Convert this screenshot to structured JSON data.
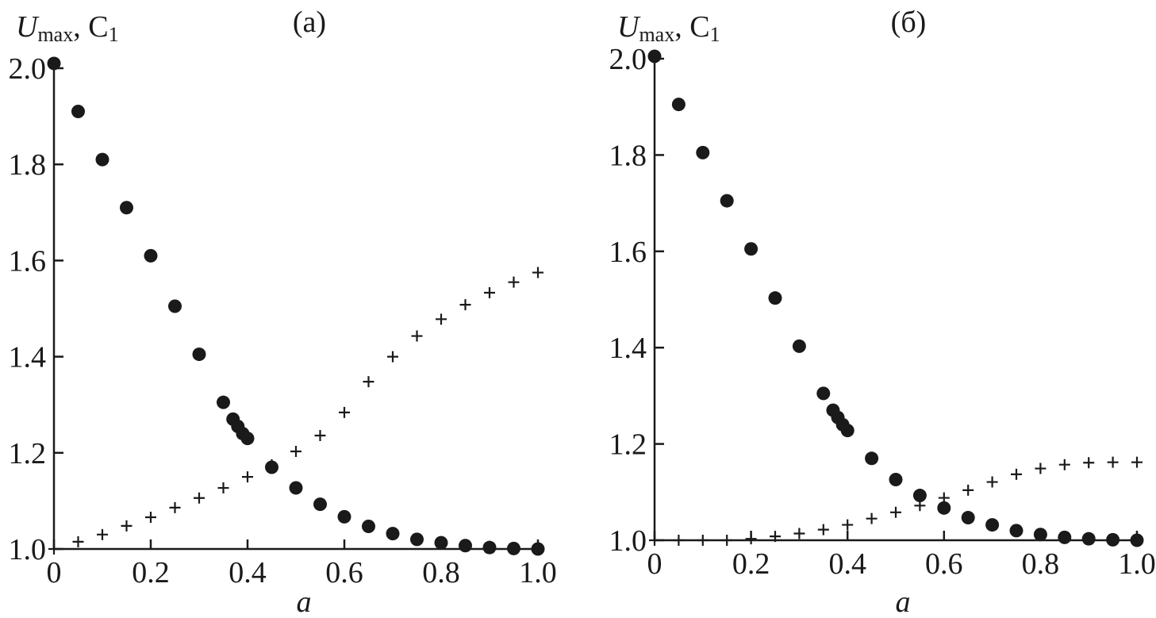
{
  "chart_data": [
    {
      "type": "scatter",
      "panel_label": "(а)",
      "ylabel_main": "U",
      "ylabel_sub": "max",
      "ylabel_rest": ", C",
      "ylabel_rest_sub": "1",
      "xlabel": "a",
      "xlim": [
        0,
        1.0
      ],
      "ylim": [
        1.0,
        2.0
      ],
      "x_ticks": [
        "0",
        "0.2",
        "0.4",
        "0.6",
        "0.8",
        "1.0"
      ],
      "y_ticks": [
        "1.0",
        "1.2",
        "1.4",
        "1.6",
        "1.8",
        "2.0"
      ],
      "grid": false,
      "series": [
        {
          "marker": "dot",
          "x": [
            0,
            0.05,
            0.1,
            0.15,
            0.2,
            0.25,
            0.3,
            0.35,
            0.37,
            0.38,
            0.39,
            0.4,
            0.45,
            0.5,
            0.55,
            0.6,
            0.65,
            0.7,
            0.75,
            0.8,
            0.85,
            0.9,
            0.95,
            1.0
          ],
          "y": [
            2.01,
            1.91,
            1.81,
            1.71,
            1.61,
            1.505,
            1.405,
            1.305,
            1.27,
            1.255,
            1.24,
            1.23,
            1.17,
            1.127,
            1.093,
            1.067,
            1.047,
            1.032,
            1.02,
            1.013,
            1.007,
            1.003,
            1.001,
            1.0
          ]
        },
        {
          "marker": "plus",
          "x": [
            0,
            0.05,
            0.1,
            0.15,
            0.2,
            0.25,
            0.3,
            0.35,
            0.4,
            0.45,
            0.5,
            0.55,
            0.6,
            0.65,
            0.7,
            0.75,
            0.8,
            0.85,
            0.9,
            0.95,
            1.0
          ],
          "y": [
            1.0,
            1.015,
            1.03,
            1.048,
            1.066,
            1.086,
            1.106,
            1.127,
            1.15,
            1.175,
            1.203,
            1.236,
            1.284,
            1.348,
            1.4,
            1.443,
            1.478,
            1.508,
            1.533,
            1.555,
            1.575
          ]
        }
      ]
    },
    {
      "type": "scatter",
      "panel_label": "(б)",
      "ylabel_main": "U",
      "ylabel_sub": "max",
      "ylabel_rest": ", C",
      "ylabel_rest_sub": "1",
      "xlabel": "a",
      "xlim": [
        0,
        1.0
      ],
      "ylim": [
        1.0,
        2.0
      ],
      "x_ticks": [
        "0",
        "0.2",
        "0.4",
        "0.6",
        "0.8",
        "1.0"
      ],
      "y_ticks": [
        "1.0",
        "1.2",
        "1.4",
        "1.6",
        "1.8",
        "2.0"
      ],
      "grid": false,
      "series": [
        {
          "marker": "dot",
          "x": [
            0,
            0.05,
            0.1,
            0.15,
            0.2,
            0.25,
            0.3,
            0.35,
            0.37,
            0.38,
            0.39,
            0.4,
            0.45,
            0.5,
            0.55,
            0.6,
            0.65,
            0.7,
            0.75,
            0.8,
            0.85,
            0.9,
            0.95,
            1.0
          ],
          "y": [
            2.005,
            1.905,
            1.805,
            1.705,
            1.605,
            1.503,
            1.403,
            1.305,
            1.27,
            1.255,
            1.24,
            1.228,
            1.17,
            1.126,
            1.093,
            1.067,
            1.047,
            1.032,
            1.02,
            1.012,
            1.006,
            1.003,
            1.001,
            1.0
          ]
        },
        {
          "marker": "plus",
          "x": [
            0,
            0.05,
            0.1,
            0.15,
            0.2,
            0.25,
            0.3,
            0.35,
            0.4,
            0.45,
            0.5,
            0.55,
            0.6,
            0.65,
            0.7,
            0.75,
            0.8,
            0.85,
            0.9,
            0.95,
            1.0
          ],
          "y": [
            1.0,
            1.0,
            1.0,
            1.0,
            1.003,
            1.008,
            1.014,
            1.022,
            1.032,
            1.045,
            1.058,
            1.072,
            1.088,
            1.104,
            1.121,
            1.137,
            1.149,
            1.157,
            1.161,
            1.162,
            1.162
          ]
        }
      ]
    }
  ]
}
